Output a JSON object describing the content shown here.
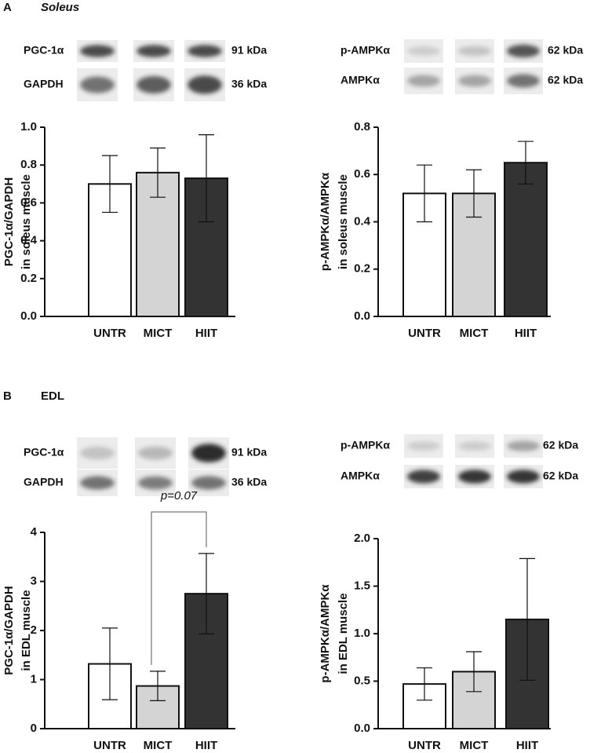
{
  "panels": [
    {
      "letter": "A",
      "title": "Soleus"
    },
    {
      "letter": "B",
      "title": "EDL"
    }
  ],
  "chart_data": [
    {
      "type": "bar",
      "ylabel": [
        "PGC-1α/GAPDH",
        "in soleus muscle"
      ],
      "categories": [
        "UNTR",
        "MICT",
        "HIIT"
      ],
      "values": [
        0.7,
        0.76,
        0.73
      ],
      "errors": [
        0.15,
        0.13,
        0.23
      ],
      "colors": [
        "#ffffff",
        "#d4d4d4",
        "#333333"
      ],
      "ylim": [
        0,
        1.0
      ],
      "yticks": [
        {
          "value": 0,
          "label": "0.0"
        },
        {
          "value": 0.2,
          "label": "0.2"
        },
        {
          "value": 0.4,
          "label": "0.4"
        },
        {
          "value": 0.6,
          "label": "0.6"
        },
        {
          "value": 0.8,
          "label": "0.8"
        },
        {
          "value": 1.0,
          "label": "1.0"
        }
      ],
      "blots": [
        {
          "label": "PGC-1α",
          "size": "91 kDa"
        },
        {
          "label": "GAPDH",
          "size": "36 kDa"
        }
      ]
    },
    {
      "type": "bar",
      "ylabel": [
        "p-AMPKα/AMPKα",
        "in soleus muscle"
      ],
      "categories": [
        "UNTR",
        "MICT",
        "HIIT"
      ],
      "values": [
        0.52,
        0.52,
        0.65
      ],
      "errors": [
        0.12,
        0.1,
        0.09
      ],
      "colors": [
        "#ffffff",
        "#d4d4d4",
        "#333333"
      ],
      "ylim": [
        0,
        0.8
      ],
      "yticks": [
        {
          "value": 0,
          "label": "0.0"
        },
        {
          "value": 0.2,
          "label": "0.2"
        },
        {
          "value": 0.4,
          "label": "0.4"
        },
        {
          "value": 0.6,
          "label": "0.6"
        },
        {
          "value": 0.8,
          "label": "0.8"
        }
      ],
      "blots": [
        {
          "label": "p-AMPKα",
          "size": "62 kDa"
        },
        {
          "label": "AMPKα",
          "size": "62 kDa"
        }
      ]
    },
    {
      "type": "bar",
      "ylabel": [
        "PGC-1α/GAPDH",
        "in EDL muscle"
      ],
      "categories": [
        "UNTR",
        "MICT",
        "HIIT"
      ],
      "values": [
        1.32,
        0.87,
        2.75
      ],
      "errors": [
        0.73,
        0.3,
        0.82
      ],
      "colors": [
        "#ffffff",
        "#d4d4d4",
        "#333333"
      ],
      "ylim": [
        0,
        4
      ],
      "yticks": [
        0,
        1,
        2,
        3,
        4
      ],
      "annotation": "p=0.07",
      "blots": [
        {
          "label": "PGC-1α",
          "size": "91 kDa"
        },
        {
          "label": "GAPDH",
          "size": "36 kDa"
        }
      ]
    },
    {
      "type": "bar",
      "ylabel": [
        "p-AMPKα/AMPKα",
        "in EDL muscle"
      ],
      "categories": [
        "UNTR",
        "MICT",
        "HIIT"
      ],
      "values": [
        0.47,
        0.6,
        1.15
      ],
      "errors": [
        0.17,
        0.21,
        0.64
      ],
      "colors": [
        "#ffffff",
        "#d4d4d4",
        "#333333"
      ],
      "ylim": [
        0,
        2.0
      ],
      "yticks": [
        {
          "value": 0,
          "label": "0.0"
        },
        {
          "value": 0.5,
          "label": "0.5"
        },
        {
          "value": 1.0,
          "label": "1.0"
        },
        {
          "value": 1.5,
          "label": "1.5"
        },
        {
          "value": 2.0,
          "label": "2.0"
        }
      ],
      "blots": [
        {
          "label": "p-AMPKα",
          "size": "62 kDa"
        },
        {
          "label": "AMPKα",
          "size": "62 kDa"
        }
      ]
    }
  ]
}
